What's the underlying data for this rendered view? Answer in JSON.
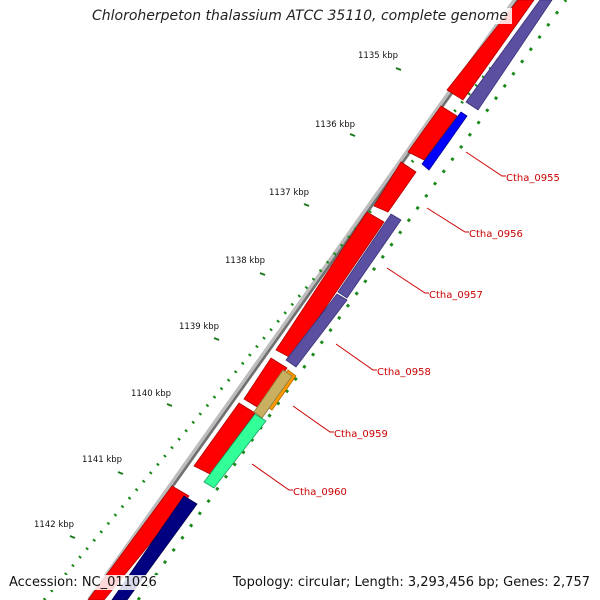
{
  "title": "Chloroherpeton thalassium ATCC 35110, complete genome",
  "accession_label": "Accession: NC_011026",
  "summary_label": "Topology: circular; Length: 3,293,456 bp; Genes: 2,757",
  "colors": {
    "forward_cds": "#ff0000",
    "reverse_cds": "#5a4fa0",
    "backbone": "#888888",
    "tick": "#1a7a1a",
    "label": "#cc0000",
    "highlight_blue": "#0000ff",
    "highlight_orange": "#ff9900",
    "highlight_tan": "#c8b060",
    "highlight_green": "#33ff99",
    "highlight_navy": "#000080"
  },
  "kbp_ticks": [
    "1135 kbp",
    "1136 kbp",
    "1137 kbp",
    "1138 kbp",
    "1139 kbp",
    "1140 kbp",
    "1141 kbp",
    "1142 kbp"
  ],
  "genes": [
    "Ctha_0955",
    "Ctha_0956",
    "Ctha_0957",
    "Ctha_0958",
    "Ctha_0959",
    "Ctha_0960"
  ]
}
